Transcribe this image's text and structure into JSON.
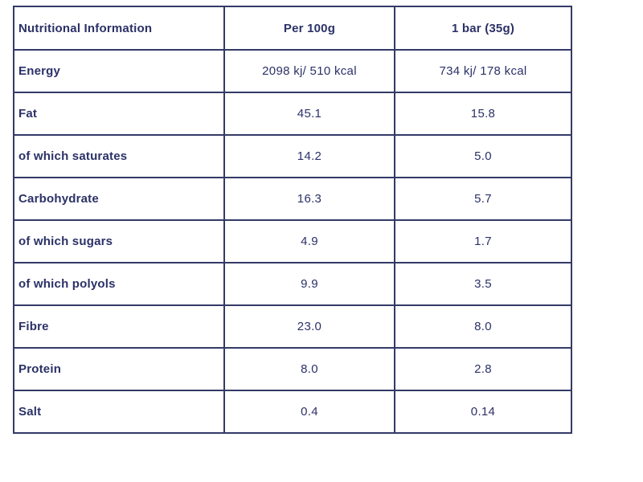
{
  "table": {
    "columns": [
      {
        "label": "Nutritional Information"
      },
      {
        "label": "Per 100g"
      },
      {
        "label": "1 bar (35g)"
      }
    ],
    "rows": [
      {
        "label": "Energy",
        "per100g": "2098 kj/ 510 kcal",
        "perbar": "734 kj/ 178 kcal"
      },
      {
        "label": "Fat",
        "per100g": "45.1",
        "perbar": "15.8"
      },
      {
        "label": "of which saturates",
        "per100g": "14.2",
        "perbar": "5.0"
      },
      {
        "label": "Carbohydrate",
        "per100g": "16.3",
        "perbar": "5.7"
      },
      {
        "label": "of which sugars",
        "per100g": "4.9",
        "perbar": "1.7"
      },
      {
        "label": "of which polyols",
        "per100g": "9.9",
        "perbar": "3.5"
      },
      {
        "label": "Fibre",
        "per100g": "23.0",
        "perbar": "8.0"
      },
      {
        "label": "Protein",
        "per100g": "8.0",
        "perbar": "2.8"
      },
      {
        "label": "Salt",
        "per100g": "0.4",
        "perbar": "0.14"
      }
    ],
    "colors": {
      "text": "#2b3167",
      "border": "#333a66",
      "background": "#ffffff"
    }
  }
}
